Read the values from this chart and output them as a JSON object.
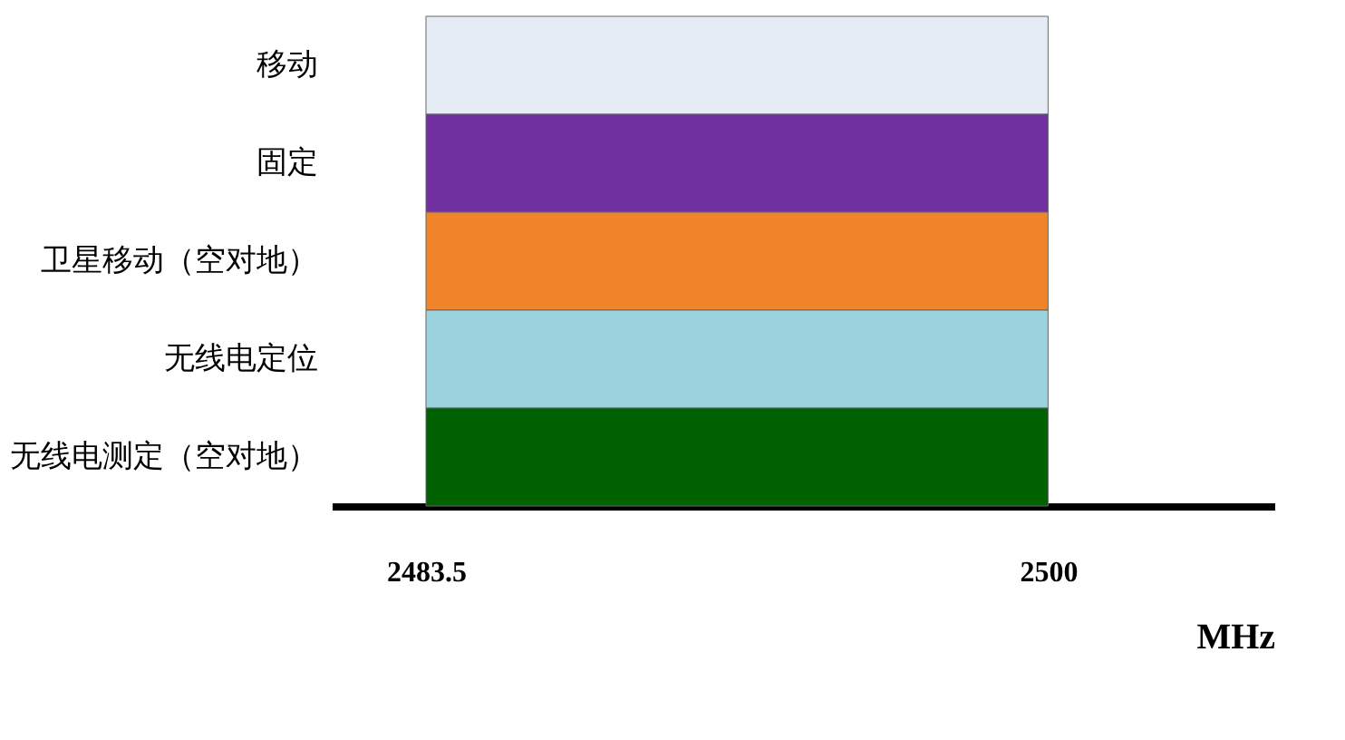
{
  "chart_data": {
    "type": "bar",
    "orientation": "horizontal",
    "categories": [
      "移动",
      "固定",
      "卫星移动（空对地）",
      "无线电定位",
      "无线电测定（空对地）"
    ],
    "values": [
      16.5,
      16.5,
      16.5,
      16.5,
      16.5
    ],
    "base": [
      2483.5,
      2483.5,
      2483.5,
      2483.5,
      2483.5
    ],
    "colors": [
      "#e6ecf6",
      "#7030a0",
      "#f0842a",
      "#9bd3df",
      "#006100"
    ],
    "xlabel": "MHz",
    "xlim": [
      2481,
      2506
    ],
    "xticks": [
      2483.5,
      2500
    ],
    "grid": false
  }
}
